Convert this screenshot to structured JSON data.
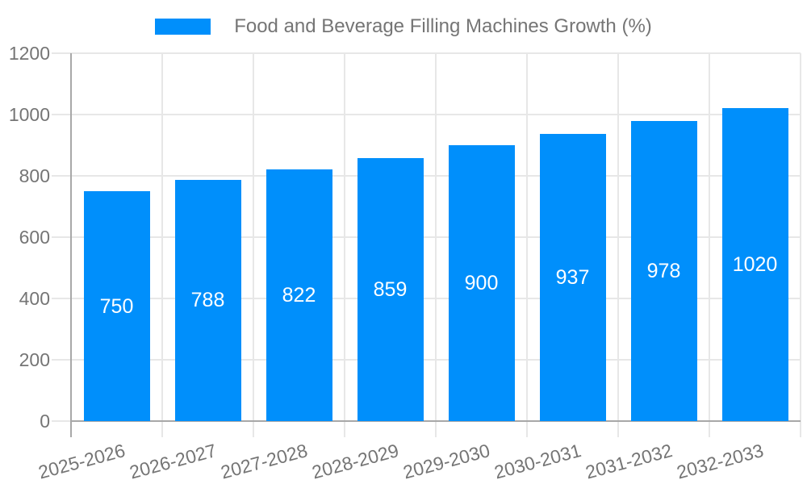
{
  "legend": {
    "label": "Food and Beverage Filling Machines Growth (%)"
  },
  "chart_data": {
    "type": "bar",
    "title": "Food and Beverage Filling Machines Growth (%)",
    "categories": [
      "2025-2026",
      "2026-2027",
      "2027-2028",
      "2028-2029",
      "2029-2030",
      "2030-2031",
      "2031-2032",
      "2032-2033"
    ],
    "values": [
      750,
      788,
      822,
      859,
      900,
      937,
      978,
      1020
    ],
    "data_labels": [
      "750",
      "788",
      "822",
      "859",
      "900",
      "937",
      "978",
      "1020"
    ],
    "xlabel": "",
    "ylabel": "",
    "ylim": [
      0,
      1200
    ],
    "yticks": [
      0,
      200,
      400,
      600,
      800,
      1000,
      1200
    ],
    "grid": true,
    "legend_position": "top",
    "bar_color": "#008FFB",
    "value_label_color": "#ffffff",
    "axis_text_color": "#757575",
    "grid_color": "#e7e7e7",
    "axis_line_color": "#a8a8a8",
    "background_color": "#ffffff"
  }
}
